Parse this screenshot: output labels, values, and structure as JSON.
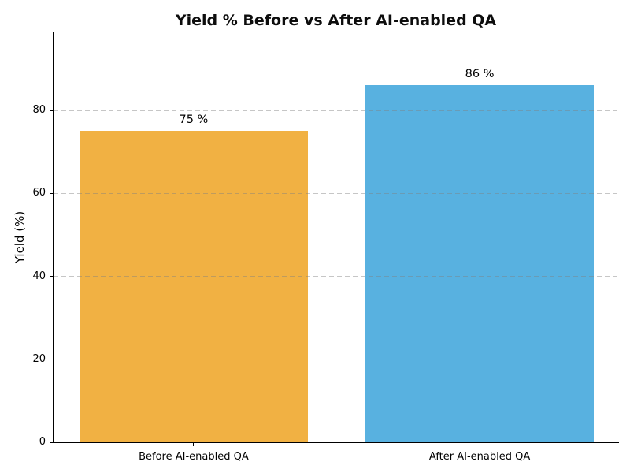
{
  "chart_data": {
    "type": "bar",
    "title": "Yield % Before vs After AI-enabled QA",
    "xlabel": "",
    "ylabel": "Yield (%)",
    "categories": [
      "Before AI-enabled QA",
      "After AI-enabled QA"
    ],
    "values": [
      75,
      86
    ],
    "bar_labels": [
      "75 %",
      "86 %"
    ],
    "bar_colors": [
      "#F1B143",
      "#58B1E0"
    ],
    "yticks": [
      0,
      20,
      40,
      60,
      80
    ],
    "ylim": [
      0,
      99.2
    ],
    "bar_width_fraction": 0.8,
    "x_margin_units": 0.49,
    "grid": {
      "axis": "y",
      "style": "dashed",
      "color": "#C0C0C0",
      "over_bars": true
    },
    "legend": "none",
    "spines": [
      "left",
      "bottom"
    ],
    "background": "#FFFFFF",
    "text_color": "#000000"
  }
}
